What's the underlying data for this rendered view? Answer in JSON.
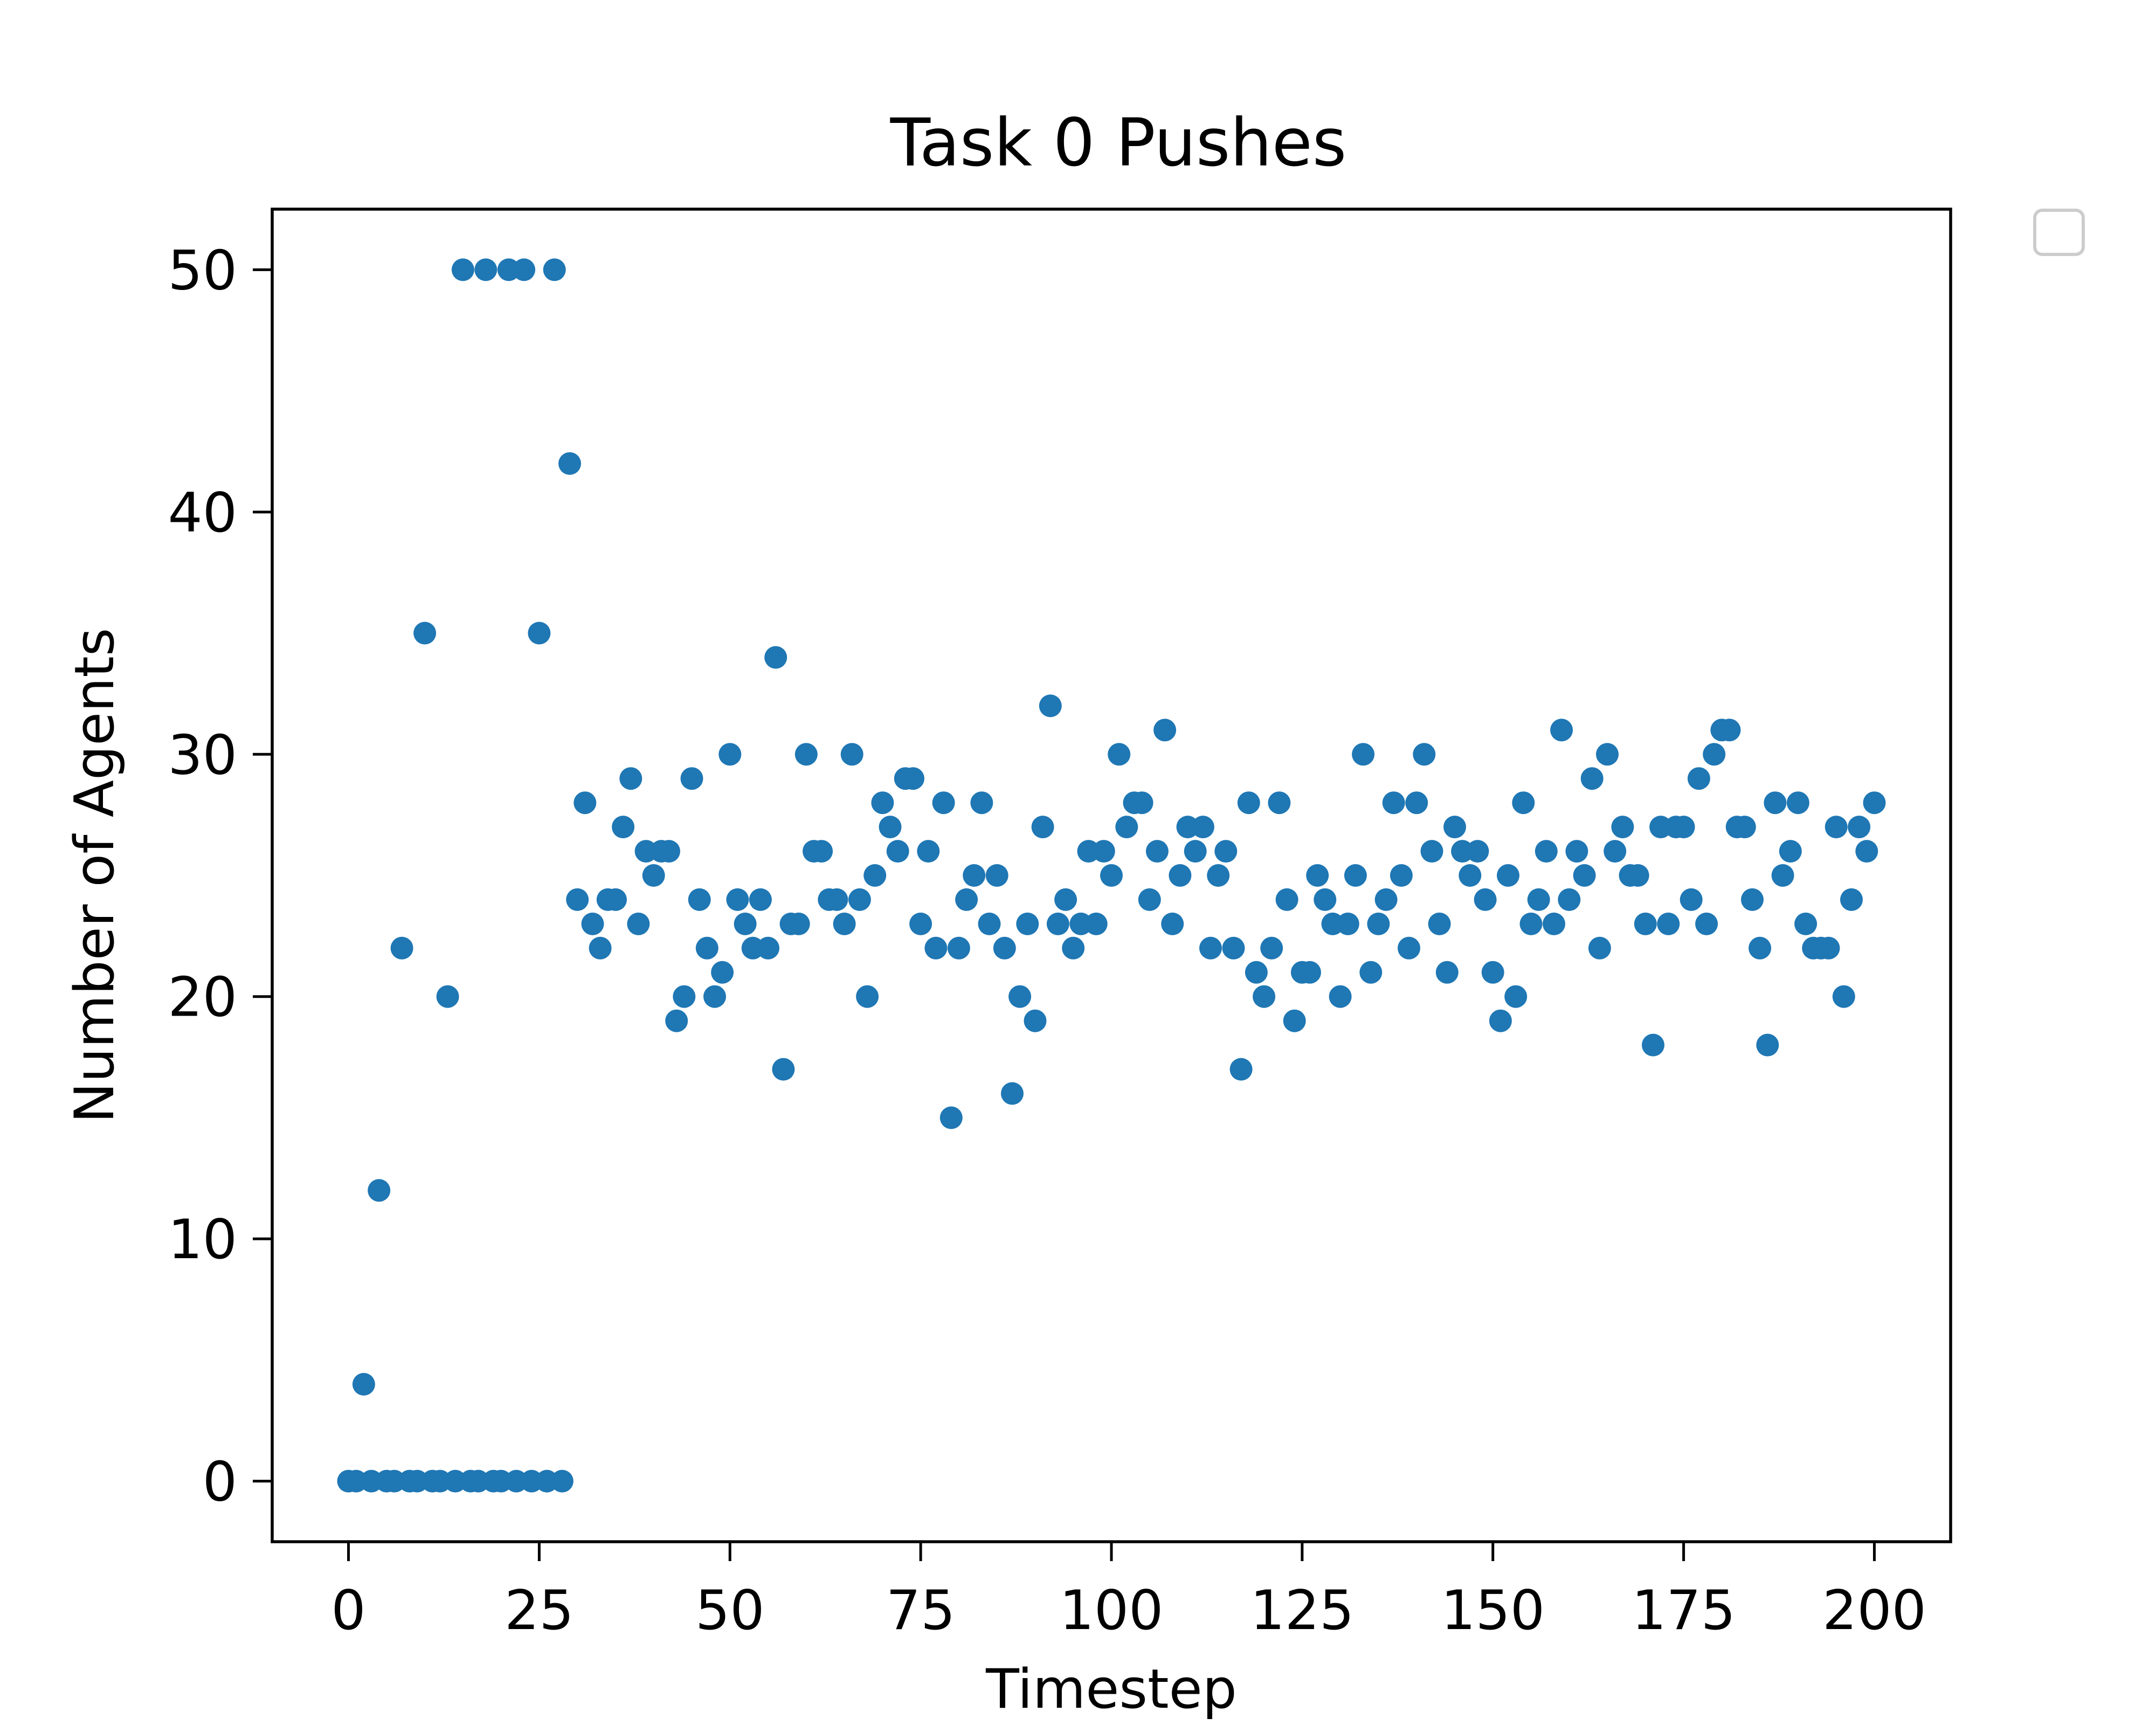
{
  "chart_data": {
    "type": "scatter",
    "title": "Task 0 Pushes",
    "xlabel": "Timestep",
    "ylabel": "Number of Agents",
    "xlim": [
      -10,
      210
    ],
    "ylim": [
      -2.5,
      52.5
    ],
    "xticks": [
      0,
      25,
      50,
      75,
      100,
      125,
      150,
      175,
      200
    ],
    "yticks": [
      0,
      10,
      20,
      30,
      40,
      50
    ],
    "grid": false,
    "legend": "top-right outside, empty",
    "series": [
      {
        "color": "#1f77b4",
        "x": [
          0,
          1,
          2,
          3,
          4,
          5,
          6,
          7,
          8,
          9,
          10,
          11,
          12,
          13,
          14,
          15,
          16,
          17,
          18,
          19,
          20,
          21,
          22,
          23,
          24,
          25,
          26,
          27,
          28,
          29,
          30,
          31,
          32,
          33,
          34,
          35,
          36,
          37,
          38,
          39,
          40,
          41,
          42,
          43,
          44,
          45,
          46,
          47,
          48,
          49,
          50,
          51,
          52,
          53,
          54,
          55,
          56,
          57,
          58,
          59,
          60,
          61,
          62,
          63,
          64,
          65,
          66,
          67,
          68,
          69,
          70,
          71,
          72,
          73,
          74,
          75,
          76,
          77,
          78,
          79,
          80,
          81,
          82,
          83,
          84,
          85,
          86,
          87,
          88,
          89,
          90,
          91,
          92,
          93,
          94,
          95,
          96,
          97,
          98,
          99,
          100,
          101,
          102,
          103,
          104,
          105,
          106,
          107,
          108,
          109,
          110,
          111,
          112,
          113,
          114,
          115,
          116,
          117,
          118,
          119,
          120,
          121,
          122,
          123,
          124,
          125,
          126,
          127,
          128,
          129,
          130,
          131,
          132,
          133,
          134,
          135,
          136,
          137,
          138,
          139,
          140,
          141,
          142,
          143,
          144,
          145,
          146,
          147,
          148,
          149,
          150,
          151,
          152,
          153,
          154,
          155,
          156,
          157,
          158,
          159,
          160,
          161,
          162,
          163,
          164,
          165,
          166,
          167,
          168,
          169,
          170,
          171,
          172,
          173,
          174,
          175,
          176,
          177,
          178,
          179,
          180,
          181,
          182,
          183,
          184,
          185,
          186,
          187,
          188,
          189,
          190,
          191,
          192,
          193,
          194,
          195,
          196,
          197,
          198,
          199,
          200
        ],
        "y": [
          0,
          0,
          4,
          0,
          12,
          0,
          0,
          22,
          0,
          0,
          35,
          0,
          0,
          20,
          0,
          50,
          0,
          0,
          50,
          0,
          0,
          50,
          0,
          50,
          0,
          35,
          0,
          50,
          0,
          42,
          24,
          28,
          23,
          22,
          24,
          24,
          27,
          29,
          23,
          26,
          25,
          26,
          26,
          19,
          20,
          29,
          24,
          22,
          20,
          21,
          30,
          24,
          23,
          22,
          24,
          22,
          34,
          17,
          23,
          23,
          30,
          26,
          26,
          24,
          24,
          23,
          30,
          24,
          20,
          25,
          28,
          27,
          26,
          29,
          29,
          23,
          26,
          22,
          28,
          15,
          22,
          24,
          25,
          28,
          23,
          25,
          22,
          16,
          20,
          23,
          19,
          27,
          32,
          23,
          24,
          22,
          23,
          26,
          23,
          26,
          25,
          30,
          27,
          28,
          28,
          24,
          26,
          31,
          23,
          25,
          27,
          26,
          27,
          22,
          25,
          26,
          22,
          17,
          28,
          21,
          20,
          22,
          28,
          24,
          19,
          21,
          21,
          25,
          24,
          23,
          20,
          23,
          25,
          30,
          21,
          23,
          24,
          28,
          25,
          22,
          28,
          30,
          26,
          23,
          21,
          27,
          26,
          25,
          26,
          24,
          21,
          19,
          25,
          20,
          28,
          23,
          24,
          26,
          23,
          31,
          24,
          26,
          25,
          29,
          22,
          30,
          26,
          27,
          25,
          25,
          23,
          18,
          27,
          23,
          27,
          27,
          24,
          29,
          23,
          30,
          31,
          31,
          27,
          27,
          24,
          22,
          18,
          28,
          25,
          26,
          28,
          23,
          22,
          22,
          22,
          27,
          20,
          24,
          27,
          26,
          28
        ]
      }
    ]
  }
}
